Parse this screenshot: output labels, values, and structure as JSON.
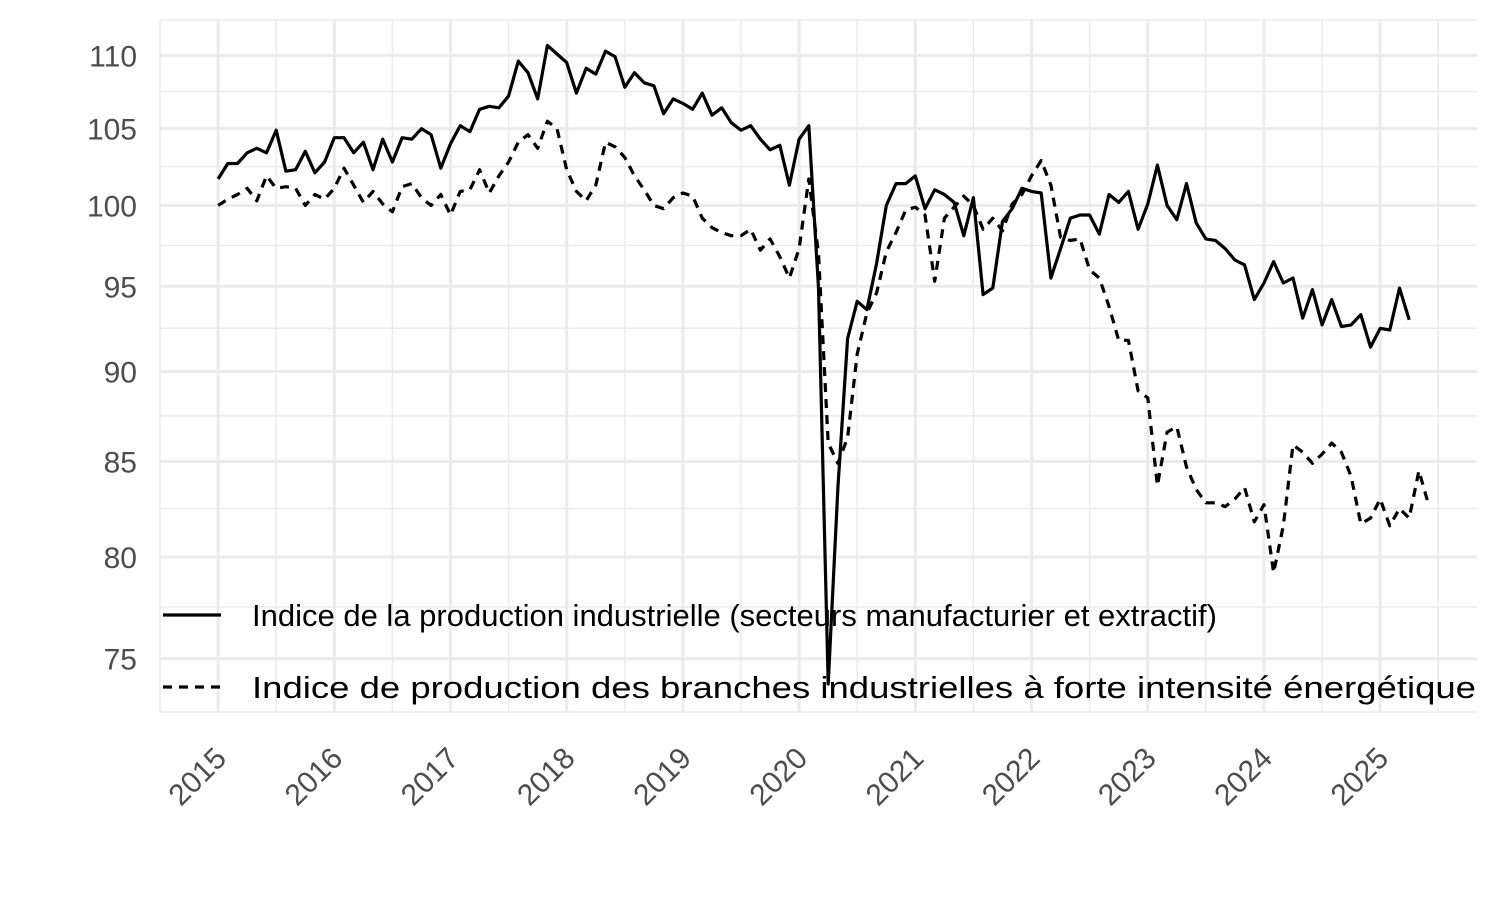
{
  "chart_data": {
    "type": "line",
    "title": "",
    "xlabel": "",
    "ylabel": "",
    "x_axis": {
      "scale": "time",
      "range": [
        "2014-07",
        "2025-11"
      ],
      "tick_labels": [
        "2015",
        "2016",
        "2017",
        "2018",
        "2019",
        "2020",
        "2021",
        "2022",
        "2023",
        "2024",
        "2025"
      ],
      "tick_rotation_deg": -45
    },
    "y_axis": {
      "scale": "log",
      "range": [
        72.5,
        112.5
      ],
      "tick_labels": [
        "75",
        "80",
        "85",
        "90",
        "95",
        "100",
        "105",
        "110"
      ]
    },
    "grid": true,
    "legend": {
      "position": "bottom-left-inside",
      "entries": [
        {
          "label": "Indice de la production industrielle (secteurs manufacturier et extractif)",
          "linetype": "solid"
        },
        {
          "label": "Indice de production des branches industrielles à forte intensité énergétique",
          "linetype": "dashed"
        }
      ]
    },
    "x_start": "2015-01",
    "x_step": "month",
    "series": [
      {
        "name": "Indice de la production industrielle (secteurs manufacturier et extractif)",
        "color": "#000000",
        "linetype": "solid",
        "values": [
          101.7,
          102.7,
          102.7,
          103.4,
          103.7,
          103.4,
          104.9,
          102.2,
          102.3,
          103.5,
          102.1,
          102.8,
          104.4,
          104.4,
          103.4,
          104.1,
          102.3,
          104.3,
          102.8,
          104.4,
          104.3,
          105.0,
          104.6,
          102.4,
          104.0,
          105.2,
          104.8,
          106.3,
          106.5,
          106.4,
          107.2,
          109.6,
          108.8,
          107.0,
          110.7,
          110.1,
          109.5,
          107.4,
          109.1,
          108.7,
          110.3,
          109.9,
          107.8,
          108.8,
          108.1,
          107.9,
          106.0,
          107.0,
          106.7,
          106.3,
          107.4,
          105.9,
          106.4,
          105.4,
          104.9,
          105.2,
          104.3,
          103.6,
          103.9,
          101.3,
          104.3,
          105.2,
          94.9,
          73.8,
          83.6,
          91.9,
          94.1,
          93.6,
          96.4,
          100.0,
          101.4,
          101.4,
          101.9,
          99.8,
          101.0,
          100.7,
          100.2,
          98.1,
          100.5,
          94.5,
          94.9,
          99.0,
          99.8,
          101.1,
          100.9,
          100.8,
          95.5,
          97.3,
          99.2,
          99.4,
          99.4,
          98.2,
          100.7,
          100.2,
          100.9,
          98.5,
          100.1,
          102.6,
          100.0,
          99.1,
          101.4,
          98.9,
          97.9,
          97.8,
          97.3,
          96.6,
          96.3,
          94.2,
          95.2,
          96.5,
          95.2,
          95.5,
          93.1,
          94.8,
          92.7,
          94.2,
          92.6,
          92.7,
          93.3,
          91.4,
          92.5,
          92.4,
          94.9,
          93.0
        ]
      },
      {
        "name": "Indice de production des branches industrielles à forte intensité énergétique",
        "color": "#000000",
        "linetype": "dashed",
        "values": [
          100.0,
          100.4,
          100.7,
          101.1,
          100.3,
          101.9,
          101.1,
          101.2,
          101.1,
          100.0,
          100.7,
          100.4,
          101.1,
          102.4,
          101.3,
          100.2,
          100.9,
          100.1,
          99.6,
          101.2,
          101.4,
          100.5,
          100.0,
          100.7,
          99.4,
          100.9,
          101.0,
          102.3,
          100.8,
          101.9,
          102.8,
          104.1,
          104.6,
          103.7,
          105.5,
          105.0,
          102.3,
          100.9,
          100.3,
          101.3,
          104.1,
          103.8,
          103.1,
          101.9,
          101.0,
          100.0,
          99.8,
          100.5,
          100.8,
          100.6,
          99.2,
          98.6,
          98.3,
          98.1,
          98.1,
          98.5,
          97.2,
          97.9,
          96.8,
          95.5,
          97.3,
          101.7,
          97.0,
          86.0,
          84.9,
          86.3,
          91.0,
          93.4,
          94.6,
          97.1,
          98.3,
          99.7,
          99.9,
          99.4,
          95.3,
          99.2,
          99.9,
          100.6,
          100.0,
          98.5,
          99.2,
          98.4,
          100.1,
          100.7,
          101.9,
          102.9,
          101.3,
          98.0,
          97.8,
          97.9,
          96.0,
          95.5,
          93.8,
          91.8,
          91.8,
          88.9,
          88.5,
          83.7,
          86.6,
          86.9,
          84.7,
          83.5,
          82.8,
          82.8,
          82.6,
          83.0,
          83.6,
          81.8,
          82.7,
          79.2,
          81.6,
          85.9,
          85.5,
          84.9,
          85.4,
          86.0,
          85.5,
          84.2,
          81.7,
          82.0,
          83.0,
          81.6,
          82.5,
          82.0,
          84.5,
          82.7
        ]
      }
    ]
  }
}
